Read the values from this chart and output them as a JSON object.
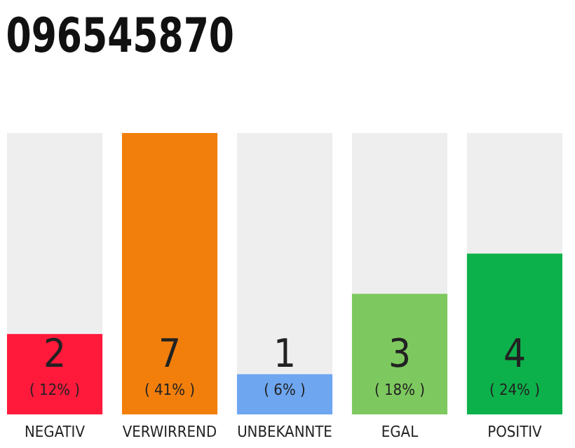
{
  "chart_data": {
    "type": "bar",
    "title": "096545870",
    "categories": [
      "NEGATIV",
      "VERWIRREND",
      "UNBEKANNTE",
      "EGAL",
      "POSITIV"
    ],
    "values": [
      2,
      7,
      1,
      3,
      4
    ],
    "colors": [
      "#ff1a3c",
      "#f27f0c",
      "#6ea6f0",
      "#7ec95f",
      "#0db14b"
    ],
    "value_labels": [
      "2\n( 12% )",
      "7\n( 41% )",
      "1\n( 6% )",
      "3\n( 18% )",
      "4\n( 24% )"
    ]
  }
}
